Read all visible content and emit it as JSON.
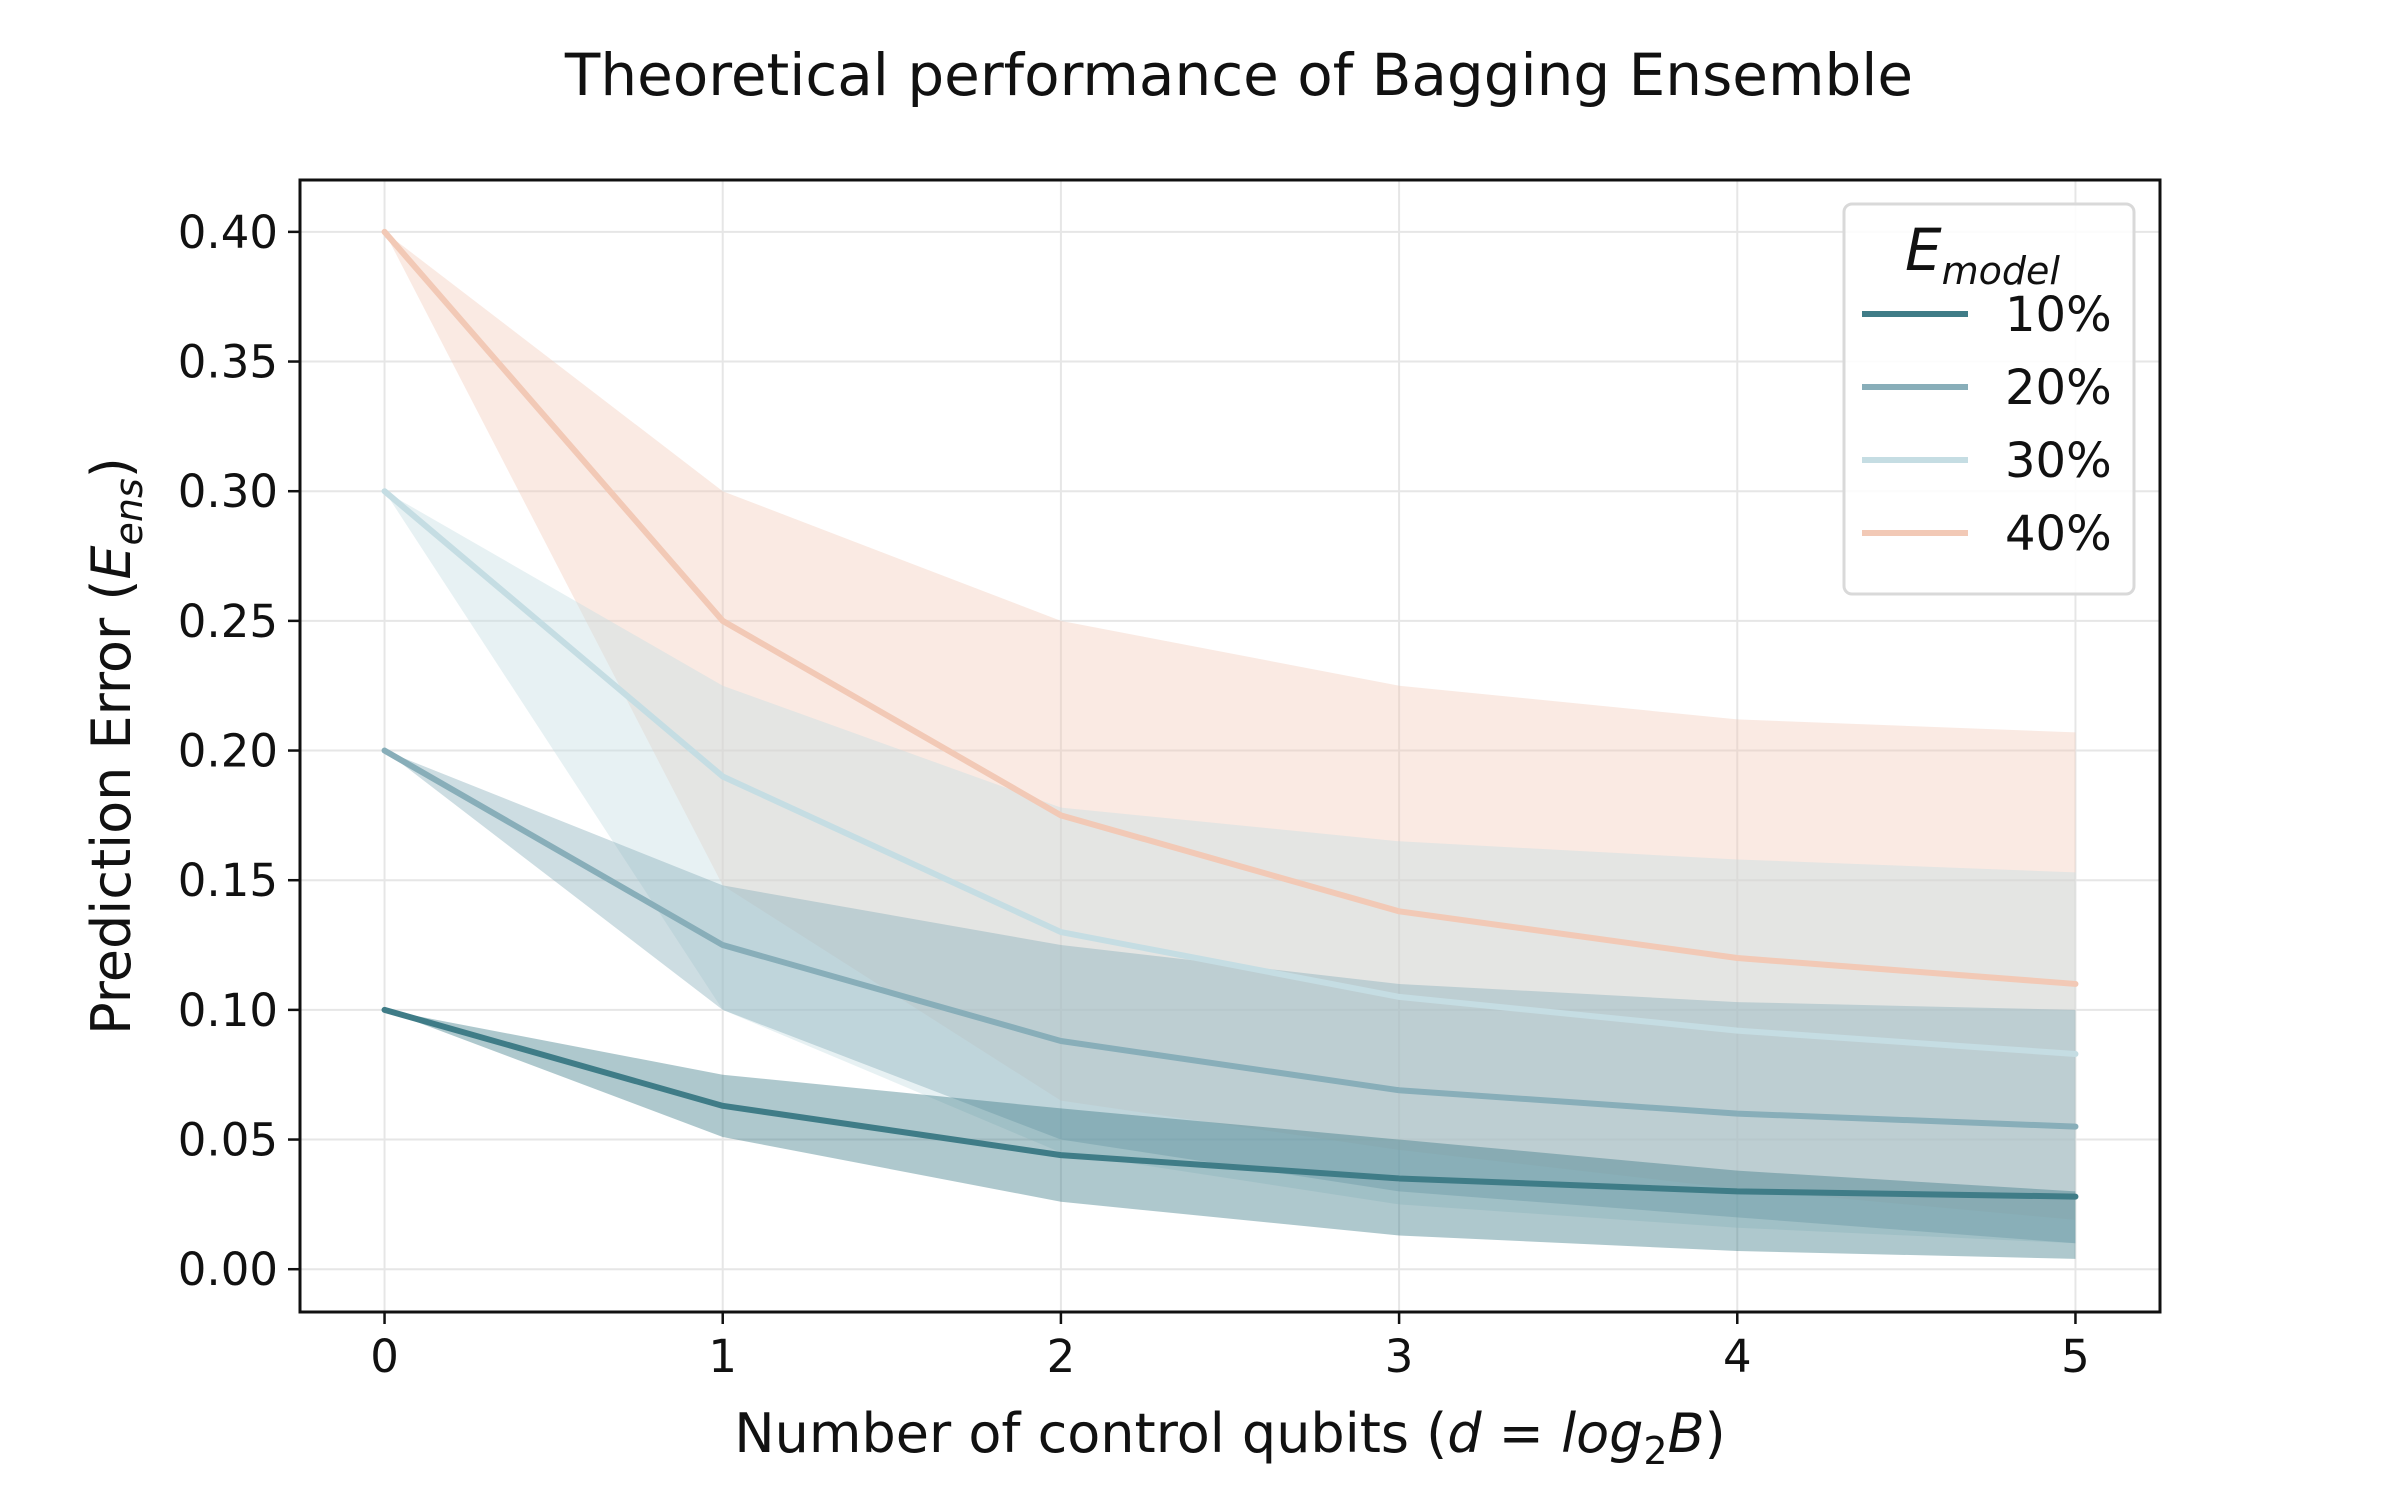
{
  "chart_data": {
    "type": "line",
    "title": "Theoretical performance of Bagging Ensemble",
    "xlabel": {
      "prefix": "Number of control qubits (",
      "math_d": "d",
      "eq": " = ",
      "math_log": "log",
      "sub": "2",
      "math_B": "B",
      "suffix": ")"
    },
    "ylabel": {
      "prefix": "Prediction Error (",
      "math": "E",
      "sub": "ens",
      "suffix": ")"
    },
    "x": [
      0,
      1,
      2,
      3,
      4,
      5
    ],
    "x_ticks": [
      "0",
      "1",
      "2",
      "3",
      "4",
      "5"
    ],
    "y_ticks": [
      "0.00",
      "0.05",
      "0.10",
      "0.15",
      "0.20",
      "0.25",
      "0.30",
      "0.35",
      "0.40"
    ],
    "xlim": [
      -0.25,
      5.25
    ],
    "ylim": [
      -0.0165,
      0.42
    ],
    "grid": true,
    "legend": {
      "title_main": "E",
      "title_sub": "model",
      "placement": "top-right"
    },
    "series": [
      {
        "name": "40%",
        "color": "#f2c9b6",
        "fill_opacity": 0.38,
        "values": [
          0.4,
          0.25,
          0.175,
          0.138,
          0.12,
          0.11
        ],
        "upper": [
          0.4,
          0.3,
          0.25,
          0.225,
          0.212,
          0.207
        ],
        "lower": [
          0.4,
          0.148,
          0.065,
          0.046,
          0.031,
          0.019
        ]
      },
      {
        "name": "30%",
        "color": "#c5dde3",
        "fill_opacity": 0.42,
        "values": [
          0.3,
          0.19,
          0.13,
          0.105,
          0.092,
          0.083
        ],
        "upper": [
          0.3,
          0.225,
          0.178,
          0.165,
          0.158,
          0.153
        ],
        "lower": [
          0.3,
          0.1,
          0.045,
          0.025,
          0.016,
          0.01
        ]
      },
      {
        "name": "20%",
        "color": "#88aeb9",
        "fill_opacity": 0.42,
        "values": [
          0.2,
          0.125,
          0.088,
          0.069,
          0.06,
          0.055
        ],
        "upper": [
          0.2,
          0.148,
          0.125,
          0.11,
          0.103,
          0.1
        ],
        "lower": [
          0.2,
          0.1,
          0.05,
          0.03,
          0.02,
          0.01
        ]
      },
      {
        "name": "10%",
        "color": "#3f7c87",
        "fill_opacity": 0.42,
        "values": [
          0.1,
          0.063,
          0.044,
          0.035,
          0.03,
          0.028
        ],
        "upper": [
          0.1,
          0.075,
          0.062,
          0.05,
          0.038,
          0.03
        ],
        "lower": [
          0.1,
          0.051,
          0.026,
          0.013,
          0.007,
          0.004
        ]
      }
    ]
  }
}
